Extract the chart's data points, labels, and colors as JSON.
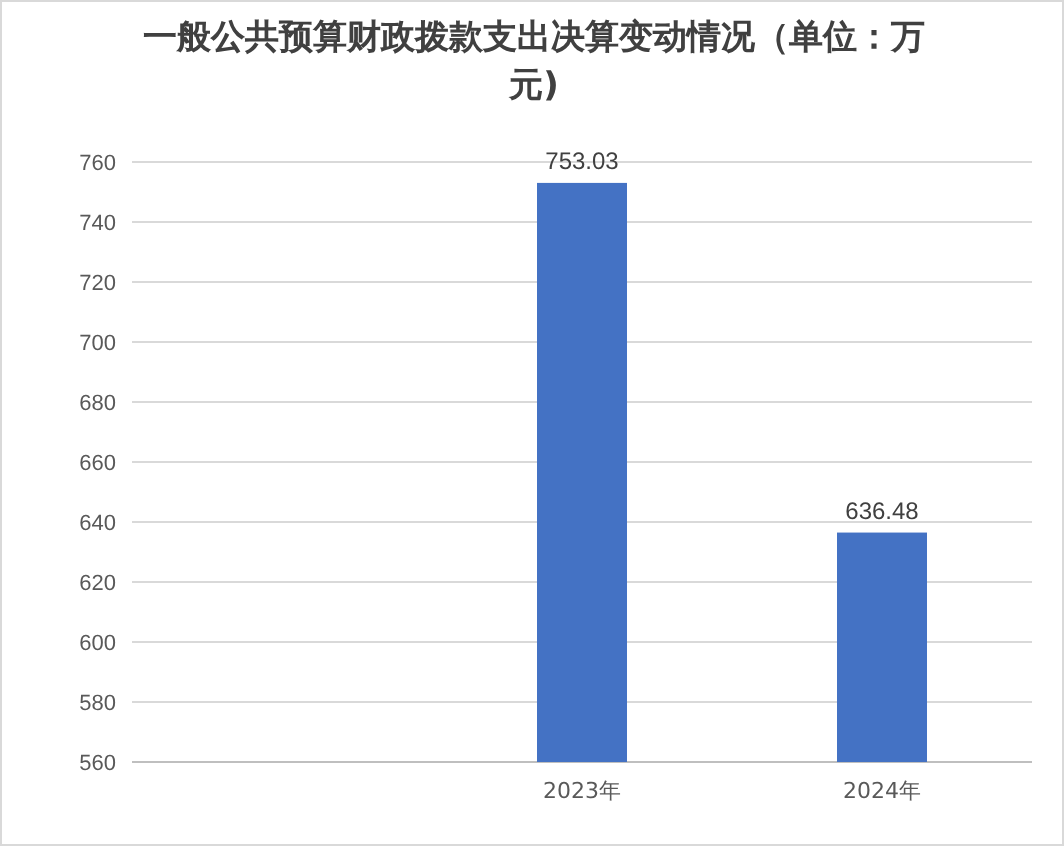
{
  "chart_data": {
    "type": "bar",
    "title": "一般公共预算财政拨款支出决算变动情况（单位：万元)",
    "categories": [
      null,
      "2023年",
      "2024年"
    ],
    "values": [
      null,
      753.03,
      636.48
    ],
    "color": "#4472c4",
    "ylim": [
      560,
      760
    ],
    "yticks": [
      560,
      580,
      600,
      620,
      640,
      660,
      680,
      700,
      720,
      740,
      760
    ],
    "grid": "y",
    "data_labels": true
  }
}
